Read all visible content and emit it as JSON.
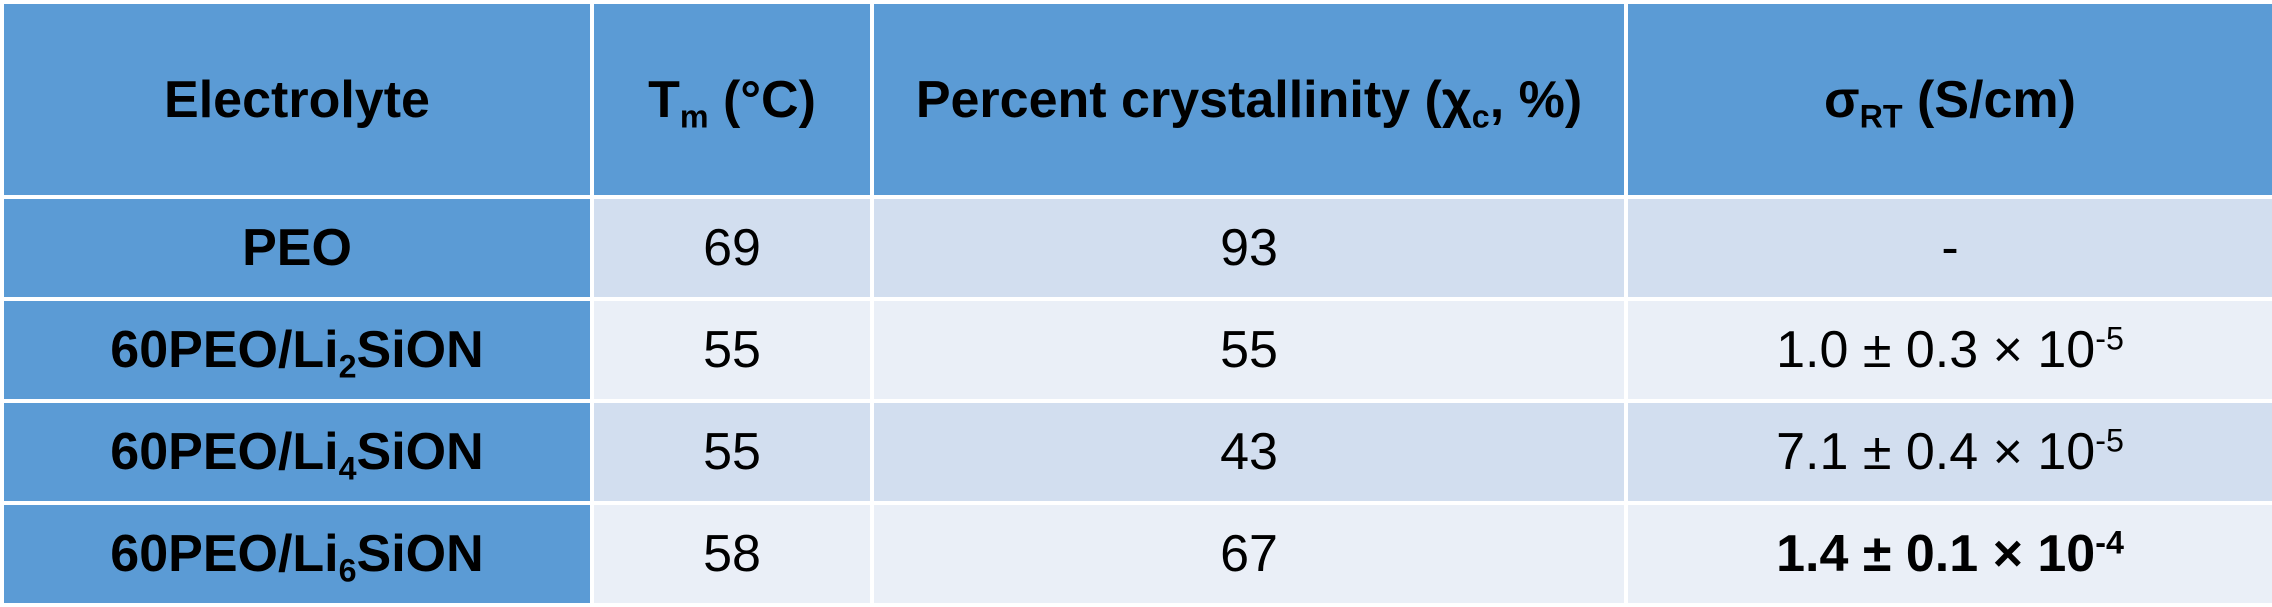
{
  "table": {
    "headers": {
      "electrolyte": "Electrolyte",
      "tm": {
        "base": "T",
        "sub": "m",
        "rest": " (°C)"
      },
      "crystallinity": {
        "base": "Percent crystallinity (χ",
        "sub": "c",
        "rest": ", %)"
      },
      "sigma": {
        "base": "σ",
        "sub": "RT",
        "rest": " (S/cm)"
      }
    },
    "rows": [
      {
        "electrolyte": {
          "pre": "PEO",
          "sub": "",
          "post": ""
        },
        "tm": "69",
        "crystallinity": "93",
        "sigma": {
          "base": "-",
          "exp": ""
        }
      },
      {
        "electrolyte": {
          "pre": "60PEO/Li",
          "sub": "2",
          "post": "SiON"
        },
        "tm": "55",
        "crystallinity": "55",
        "sigma": {
          "base": "1.0 ± 0.3 × 10",
          "exp": "-5"
        }
      },
      {
        "electrolyte": {
          "pre": "60PEO/Li",
          "sub": "4",
          "post": "SiON"
        },
        "tm": "55",
        "crystallinity": "43",
        "sigma": {
          "base": "7.1 ± 0.4 × 10",
          "exp": "-5"
        }
      },
      {
        "electrolyte": {
          "pre": "60PEO/Li",
          "sub": "6",
          "post": "SiON"
        },
        "tm": "58",
        "crystallinity": "67",
        "sigma": {
          "base": "1.4 ± 0.1 × 10",
          "exp": "-4"
        }
      }
    ]
  },
  "colors": {
    "header_bg": "#5b9bd5",
    "band_dark": "#d2deef",
    "band_light": "#eaeff7",
    "border": "#ffffff"
  }
}
